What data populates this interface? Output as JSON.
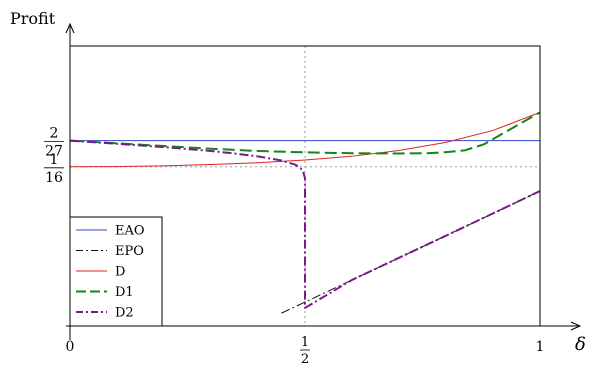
{
  "chart_data": {
    "type": "line",
    "title": "",
    "ylabel": "Profit",
    "xlabel": "δ",
    "xlim": [
      0,
      1.04
    ],
    "ylim": [
      -0.008,
      0.116
    ],
    "grid": false,
    "x_ticks": [
      {
        "value": 0,
        "label": "0"
      },
      {
        "value": 0.5,
        "label": "1/2"
      },
      {
        "value": 1,
        "label": "1"
      }
    ],
    "y_ticks": [
      {
        "value": 0.0741,
        "label": "2/27"
      },
      {
        "value": 0.0625,
        "label": "1/16"
      }
    ],
    "reference_lines": [
      {
        "axis": "x",
        "value": 0.5,
        "style": "dotted",
        "color": "#9a9a9a"
      },
      {
        "axis": "y",
        "value": 0.0625,
        "style": "dotted",
        "color": "#9a9a9a"
      }
    ],
    "legend": {
      "placement": "bottom-left"
    },
    "series": [
      {
        "name": "EAO",
        "color": "#3344cc",
        "dash": "solid",
        "x": [
          0,
          1
        ],
        "y": [
          0.0741,
          0.0741
        ]
      },
      {
        "name": "EPO",
        "color": "#111111",
        "dash": "dashdot",
        "x": [
          0.45,
          0.6,
          0.8,
          0.95,
          1
        ],
        "y": [
          -0.0023,
          0.0124,
          0.032,
          0.0468,
          0.0518
        ]
      },
      {
        "name": "D",
        "color": "#e02020",
        "dash": "solid",
        "x": [
          0,
          0.1,
          0.2,
          0.3,
          0.4,
          0.5,
          0.6,
          0.7,
          0.8,
          0.9,
          1
        ],
        "y": [
          0.0625,
          0.0626,
          0.0629,
          0.0635,
          0.0643,
          0.0655,
          0.0672,
          0.0697,
          0.0733,
          0.0786,
          0.0866
        ]
      },
      {
        "name": "D1",
        "color": "#118811",
        "dash": "longdash",
        "x": [
          0,
          0.1,
          0.2,
          0.3,
          0.4,
          0.5,
          0.6,
          0.7,
          0.76,
          0.8,
          0.84,
          0.88,
          1
        ],
        "y": [
          0.0741,
          0.0729,
          0.0717,
          0.0705,
          0.0695,
          0.0689,
          0.0685,
          0.0684,
          0.0685,
          0.069,
          0.0698,
          0.0724,
          0.0866
        ]
      },
      {
        "name": "D2",
        "color": "#7a1a8a",
        "dash": "dashdot",
        "x": [
          0,
          0.1,
          0.2,
          0.3,
          0.35,
          0.4,
          0.45,
          0.48,
          0.495,
          0.5,
          0.5,
          0.6,
          0.8,
          0.95,
          1
        ],
        "y": [
          0.0741,
          0.0727,
          0.0712,
          0.0695,
          0.0684,
          0.0671,
          0.0653,
          0.0634,
          0.061,
          0.0575,
          0.0,
          0.0124,
          0.032,
          0.0468,
          0.0518
        ]
      }
    ]
  }
}
